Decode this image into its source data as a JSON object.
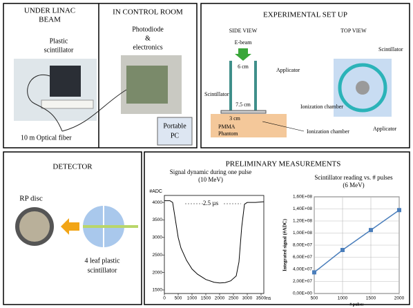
{
  "beam_panel": {
    "title": [
      "UNDER LINAC",
      "BEAM"
    ],
    "scintillator": [
      "Plastic",
      "scintillator"
    ],
    "fiber": "10 m Optical fiber"
  },
  "control_panel": {
    "title": "IN CONTROL ROOM",
    "electronics": [
      "Photodiode",
      "&",
      "electronics"
    ],
    "pc": [
      "Portable",
      "PC"
    ]
  },
  "setup_panel": {
    "title": "EXPERIMENTAL SET UP",
    "side_view": "SIDE VIEW",
    "top_view": "TOP VIEW",
    "ebeam": "E-beam",
    "width6": "6 cm",
    "applicator": "Applicator",
    "scintillator": "Scintillator",
    "width75": "7.5 cm",
    "width3": "3 cm",
    "phantom": [
      "PMMA",
      "Phantom"
    ],
    "ion_chamber": "Ionization chamber",
    "top_scintillator": "Scintillator",
    "top_ion_chamber": "Ionization chamber",
    "top_applicator": "Applicator"
  },
  "detector_panel": {
    "title": "DETECTOR",
    "disc": "RP disc",
    "leaf": [
      "4 leaf plastic",
      "scintillator"
    ]
  },
  "measurements_panel": {
    "title": "PRELIMINARY MEASUREMENTS"
  },
  "chart_data": [
    {
      "type": "line",
      "title": [
        "Signal dynamic during one pulse",
        "(10 MeV)"
      ],
      "y_label": "#ADC",
      "x_label": "ns",
      "annotation": "2.5 µs",
      "color": "#000000",
      "markers": false,
      "x": [
        0,
        200,
        300,
        400,
        500,
        600,
        800,
        1000,
        1200,
        1500,
        1800,
        2000,
        2200,
        2400,
        2600,
        2700,
        2800,
        2900,
        3000,
        3300,
        3600
      ],
      "values": [
        4050,
        4050,
        4000,
        3500,
        3000,
        2700,
        2350,
        2100,
        1950,
        1800,
        1720,
        1700,
        1710,
        1760,
        1900,
        2300,
        3300,
        3950,
        4000,
        4000,
        4020
      ],
      "xlim": [
        0,
        3600
      ],
      "ylim": [
        1400,
        4200
      ],
      "xticks": [
        0,
        500,
        1000,
        1500,
        2000,
        2500,
        3000,
        3500
      ],
      "yticks": [
        1500,
        2000,
        2500,
        3000,
        3500,
        4000
      ]
    },
    {
      "type": "line",
      "title": [
        "Scintillator reading vs. # pulses",
        "(6 MeV)"
      ],
      "y_label": "Integrated signal (#ADC)",
      "x_label": "# pulses",
      "color": "#4a7ebb",
      "markers": true,
      "x": [
        500,
        1000,
        1500,
        2000
      ],
      "values": [
        35000000,
        72000000,
        105000000,
        138000000
      ],
      "xlim": [
        500,
        2000
      ],
      "ylim": [
        0,
        160000000
      ],
      "xticks": [
        500,
        1000,
        1500,
        2000
      ],
      "yticks": [
        {
          "value": 0,
          "label": "0,00E+00"
        },
        {
          "value": 20000000,
          "label": "2,00E+07"
        },
        {
          "value": 40000000,
          "label": "4,00E+07"
        },
        {
          "value": 60000000,
          "label": "6,00E+07"
        },
        {
          "value": 80000000,
          "label": "8,00E+07"
        },
        {
          "value": 100000000,
          "label": "1,00E+08"
        },
        {
          "value": 120000000,
          "label": "1,20E+08"
        },
        {
          "value": 140000000,
          "label": "1,40E+08"
        },
        {
          "value": 160000000,
          "label": "1,60E+08"
        }
      ],
      "grid": true
    }
  ]
}
